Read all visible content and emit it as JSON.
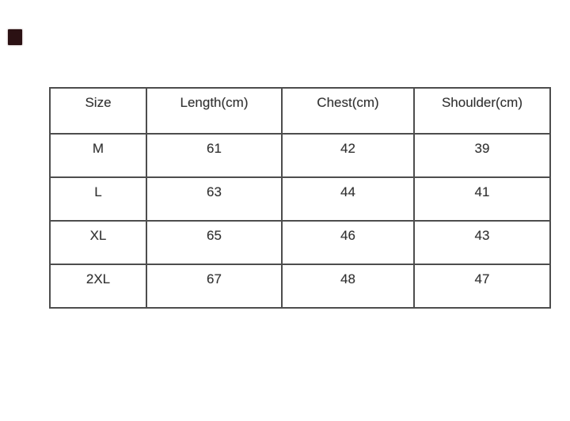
{
  "page": {
    "background": "#ffffff"
  },
  "marker": {
    "description": "small dark square mark near top-left corner",
    "color": "#2b1113"
  },
  "colors": {
    "table_border": "#4d4d4d",
    "cell_text": "#303030",
    "page_background": "#ffffff"
  },
  "chart_data": {
    "type": "table",
    "columns": [
      "Size",
      "Length(cm)",
      "Chest(cm)",
      "Shoulder(cm)"
    ],
    "rows": [
      [
        "M",
        "61",
        "42",
        "39"
      ],
      [
        "L",
        "63",
        "44",
        "41"
      ],
      [
        "XL",
        "65",
        "46",
        "43"
      ],
      [
        "2XL",
        "67",
        "48",
        "47"
      ]
    ],
    "layout_hints": {
      "header_position": "top-row",
      "cell_text_align": "center-top",
      "grid": "full-borders"
    }
  }
}
